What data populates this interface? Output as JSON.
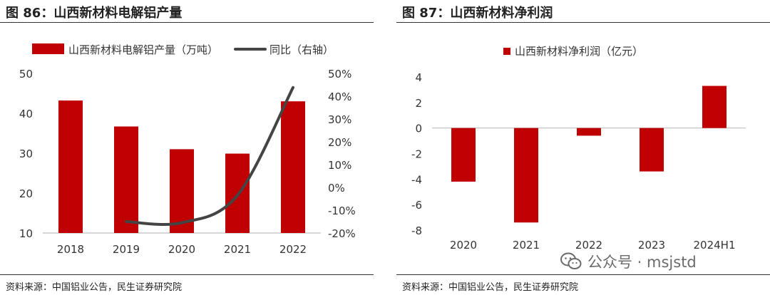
{
  "left_figure": {
    "title": "图 86：山西新材料电解铝产量",
    "source": "资料来源：中国铝业公告，民生证券研究院"
  },
  "right_figure": {
    "title": "图 87：山西新材料净利润",
    "source": "资料来源：中国铝业公告，民生证券研究院"
  },
  "watermark": {
    "text": "公众号 · msjstd",
    "icon": "wechat-icon"
  },
  "colors": {
    "bar": "#c00000",
    "line": "#444444",
    "axis": "#bfbfbf",
    "text": "#333333"
  },
  "chart_data": [
    {
      "type": "bar",
      "title": "山西新材料电解铝产量",
      "categories": [
        "2018",
        "2019",
        "2020",
        "2021",
        "2022"
      ],
      "series": [
        {
          "name": "山西新材料电解铝产量（万吨）",
          "type": "bar",
          "axis": "left",
          "values": [
            43.2,
            36.7,
            31.0,
            29.9,
            43.0
          ]
        },
        {
          "name": "同比（右轴）",
          "type": "line",
          "axis": "right",
          "unit": "%",
          "values": [
            null,
            -15.0,
            -15.5,
            -3.5,
            43.8
          ]
        }
      ],
      "ylim": [
        10,
        50
      ],
      "yticks": [
        "10",
        "20",
        "30",
        "40",
        "50"
      ],
      "y2lim": [
        -20,
        50
      ],
      "y2ticks": [
        "-20%",
        "-10%",
        "0%",
        "10%",
        "20%",
        "30%",
        "40%",
        "50%"
      ],
      "legend": "top",
      "grid": false
    },
    {
      "type": "bar",
      "title": "山西新材料净利润",
      "categories": [
        "2020",
        "2021",
        "2022",
        "2023",
        "2024H1"
      ],
      "series": [
        {
          "name": "山西新材料净利润（亿元）",
          "values": [
            -4.2,
            -7.4,
            -0.6,
            -3.4,
            3.3
          ]
        }
      ],
      "ylim": [
        -8,
        4
      ],
      "yticks": [
        "-8",
        "-6",
        "-4",
        "-2",
        "0",
        "2",
        "4"
      ],
      "legend": "top",
      "grid": false
    }
  ]
}
